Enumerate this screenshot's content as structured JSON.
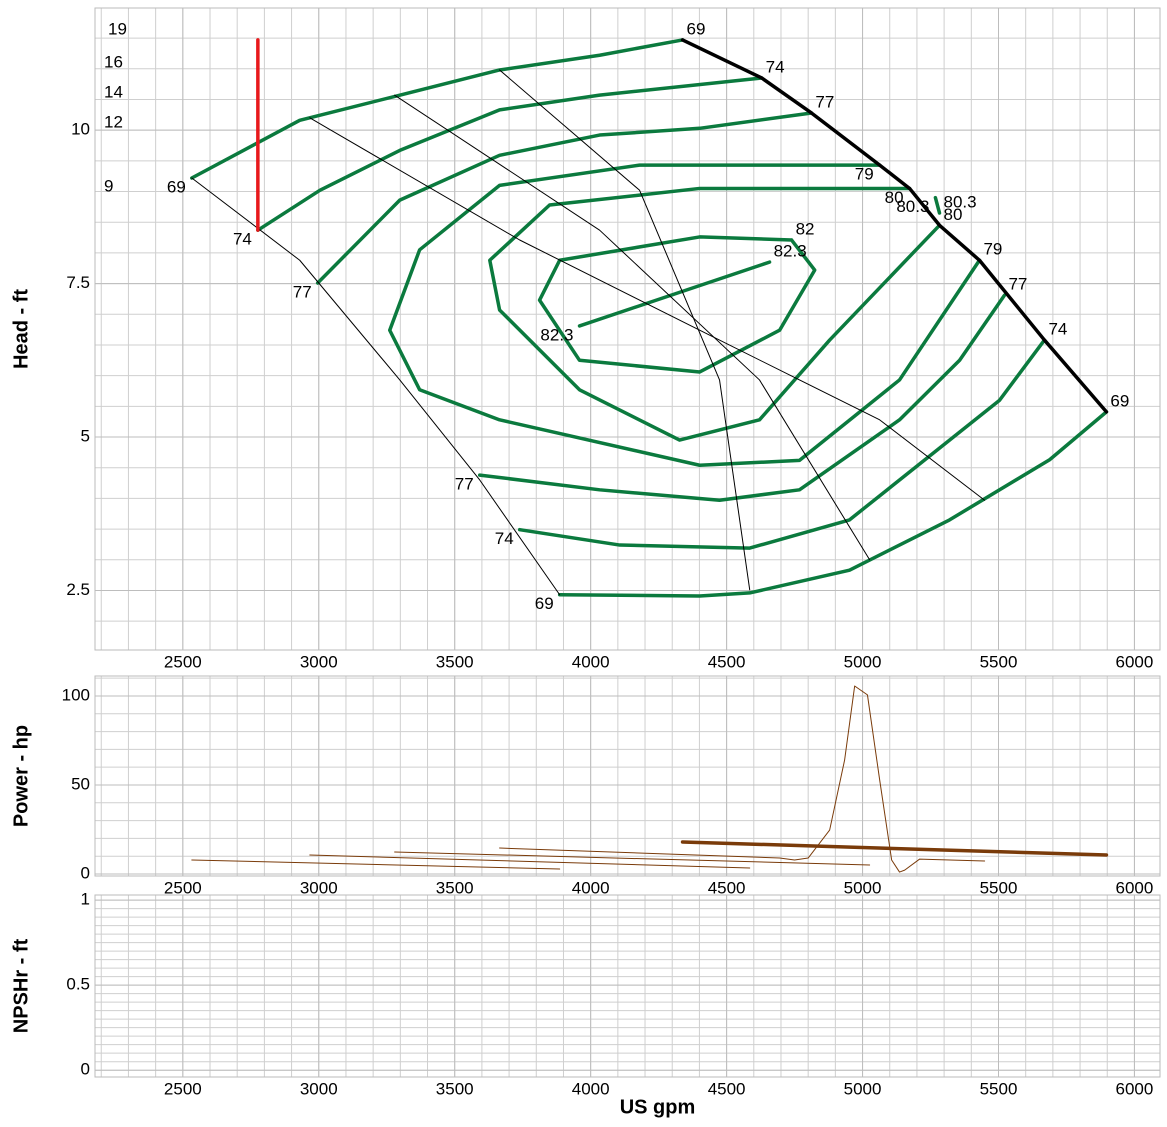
{
  "chart_data": [
    {
      "type": "line",
      "y_label": "Head - ft",
      "xlim": [
        2177,
        6094
      ],
      "xticks": [
        2500,
        3000,
        3500,
        4000,
        4500,
        5000,
        5500,
        6000
      ],
      "x_grid_step": 100,
      "ylim": [
        1.53,
        11.99
      ],
      "yticks": [
        2.5,
        5,
        7.5,
        10
      ],
      "y_grid_step": 0.5,
      "grid": true,
      "diameter_labels": [
        "19",
        "16",
        "14",
        "12",
        "9"
      ],
      "series": [
        {
          "name": "69",
          "color": "#0b7a3e",
          "width": 3.5,
          "x": [
            2533,
            2930,
            3298,
            3665,
            4033,
            4338
          ],
          "values": [
            9.22,
            10.16,
            10.57,
            10.98,
            11.22,
            11.47
          ]
        },
        {
          "name": "74",
          "color": "#0b7a3e",
          "width": 3.5,
          "x": [
            2776,
            3004,
            3298,
            3665,
            4033,
            4629
          ],
          "values": [
            8.37,
            9.02,
            9.67,
            10.33,
            10.57,
            10.85
          ]
        },
        {
          "name": "77",
          "color": "#0b7a3e",
          "width": 3.5,
          "x": [
            2996,
            3298,
            3665,
            4033,
            4401,
            4812
          ],
          "values": [
            7.51,
            8.86,
            9.59,
            9.92,
            10.03,
            10.28
          ]
        },
        {
          "name": "79",
          "color": "#0b7a3e",
          "width": 3.5,
          "x": [
            5063,
            4180,
            3665,
            3371,
            3261,
            3371,
            3665,
            4401,
            4768,
            5136,
            5430
          ],
          "values": [
            9.43,
            9.43,
            9.1,
            8.05,
            6.74,
            5.77,
            5.28,
            4.54,
            4.62,
            5.93,
            7.88
          ]
        },
        {
          "name": "80",
          "color": "#0b7a3e",
          "width": 3.5,
          "x": [
            5173,
            4401,
            3849,
            3629,
            3665,
            3959,
            4327,
            4621,
            4879,
            5283
          ],
          "values": [
            9.05,
            9.05,
            8.78,
            7.88,
            7.07,
            5.77,
            4.95,
            5.28,
            6.58,
            8.45
          ]
        },
        {
          "name": "80.3",
          "color": "#0b7a3e",
          "width": 3.5,
          "x": [
            5268,
            5283
          ],
          "values": [
            8.9,
            8.65
          ]
        },
        {
          "name": "82",
          "color": "#0b7a3e",
          "width": 3.5,
          "x": [
            4739,
            4401,
            3886,
            3812,
            3959,
            4401,
            4695,
            4824,
            4739
          ],
          "values": [
            8.21,
            8.26,
            7.88,
            7.23,
            6.25,
            6.06,
            6.74,
            7.72,
            8.21
          ]
        },
        {
          "name": "82.3",
          "color": "#0b7a3e",
          "width": 3.5,
          "x": [
            3959,
            4658
          ],
          "values": [
            6.81,
            7.85
          ]
        },
        {
          "name": "77",
          "color": "#0b7a3e",
          "width": 3.5,
          "x": [
            3592,
            4033,
            4474,
            4768,
            5136,
            5357,
            5522
          ],
          "values": [
            4.38,
            4.14,
            3.97,
            4.14,
            5.28,
            6.25,
            7.31
          ]
        },
        {
          "name": "74",
          "color": "#0b7a3e",
          "width": 3.5,
          "x": [
            3739,
            4107,
            4585,
            4952,
            5320,
            5504,
            5669
          ],
          "values": [
            3.49,
            3.24,
            3.19,
            3.65,
            4.95,
            5.6,
            6.58
          ]
        },
        {
          "name": "69",
          "color": "#0b7a3e",
          "width": 3.5,
          "x": [
            3886,
            4401,
            4585,
            4952,
            5320,
            5688,
            5897
          ],
          "values": [
            2.43,
            2.41,
            2.46,
            2.83,
            3.65,
            4.63,
            5.41
          ]
        },
        {
          "color": "#000000",
          "width": 1,
          "x": [
            2533,
            2930,
            3298,
            3592,
            3886
          ],
          "values": [
            9.22,
            7.88,
            5.93,
            4.3,
            2.43
          ]
        },
        {
          "color": "#000000",
          "width": 1,
          "x": [
            2967,
            3739,
            4401,
            5063,
            5449
          ],
          "values": [
            10.2,
            8.21,
            6.74,
            5.28,
            3.97
          ]
        },
        {
          "color": "#000000",
          "width": 1,
          "x": [
            3279,
            4033,
            4621,
            5026
          ],
          "values": [
            10.57,
            8.37,
            5.93,
            3.0
          ]
        },
        {
          "color": "#000000",
          "width": 1,
          "x": [
            3665,
            4180,
            4474,
            4585
          ],
          "values": [
            10.98,
            9.02,
            5.93,
            2.51
          ]
        },
        {
          "color": "#000000",
          "width": 3.5,
          "x": [
            4338,
            4629,
            4812,
            5063,
            5173,
            5283,
            5430,
            5669,
            5897
          ],
          "values": [
            11.47,
            10.85,
            10.28,
            9.43,
            9.05,
            8.45,
            7.88,
            6.58,
            5.41
          ]
        },
        {
          "color": "#e8191c",
          "width": 3.5,
          "x": [
            2776,
            2776
          ],
          "values": [
            11.47,
            8.37
          ]
        }
      ]
    },
    {
      "type": "line",
      "y_label": "Power - hp",
      "xlim": [
        2177,
        6094
      ],
      "xticks": [
        2500,
        3000,
        3500,
        4000,
        4500,
        5000,
        5500,
        6000
      ],
      "x_grid_step": 100,
      "ylim": [
        -1.1,
        111.2
      ],
      "yticks": [
        0,
        50,
        100
      ],
      "y_grid_step": 10,
      "grid": true,
      "series": [
        {
          "color": "#7a3b0a",
          "width": 1,
          "x": [
            2533,
            3886
          ],
          "values": [
            7.9,
            2.8
          ]
        },
        {
          "color": "#7a3b0a",
          "width": 1,
          "x": [
            2967,
            4585
          ],
          "values": [
            10.7,
            3.4
          ]
        },
        {
          "color": "#7a3b0a",
          "width": 1,
          "x": [
            3279,
            5026
          ],
          "values": [
            12.4,
            5.1
          ]
        },
        {
          "color": "#7a3b0a",
          "width": 1,
          "x": [
            3665,
            4695,
            4750,
            4800,
            4879,
            4934,
            4971,
            5018,
            5063,
            5107,
            5136,
            5155,
            5210,
            5449
          ],
          "values": [
            14.6,
            9.0,
            7.9,
            9.0,
            24.7,
            64,
            105.6,
            100.6,
            52.8,
            7.9,
            1.1,
            2.2,
            8.4,
            7.3
          ]
        },
        {
          "color": "#7a3b0a",
          "width": 3.5,
          "x": [
            4338,
            5897
          ],
          "values": [
            18,
            10.7
          ]
        }
      ]
    },
    {
      "type": "line",
      "y_label": "NPSHr - ft",
      "x_label": "US gpm",
      "xlim": [
        2177,
        6094
      ],
      "xticks": [
        2500,
        3000,
        3500,
        4000,
        4500,
        5000,
        5500,
        6000
      ],
      "x_grid_step": 100,
      "ylim": [
        -0.04,
        1.03
      ],
      "yticks": [
        0,
        0.5,
        1
      ],
      "y_grid_step": 0.05,
      "grid": true,
      "series": []
    }
  ]
}
